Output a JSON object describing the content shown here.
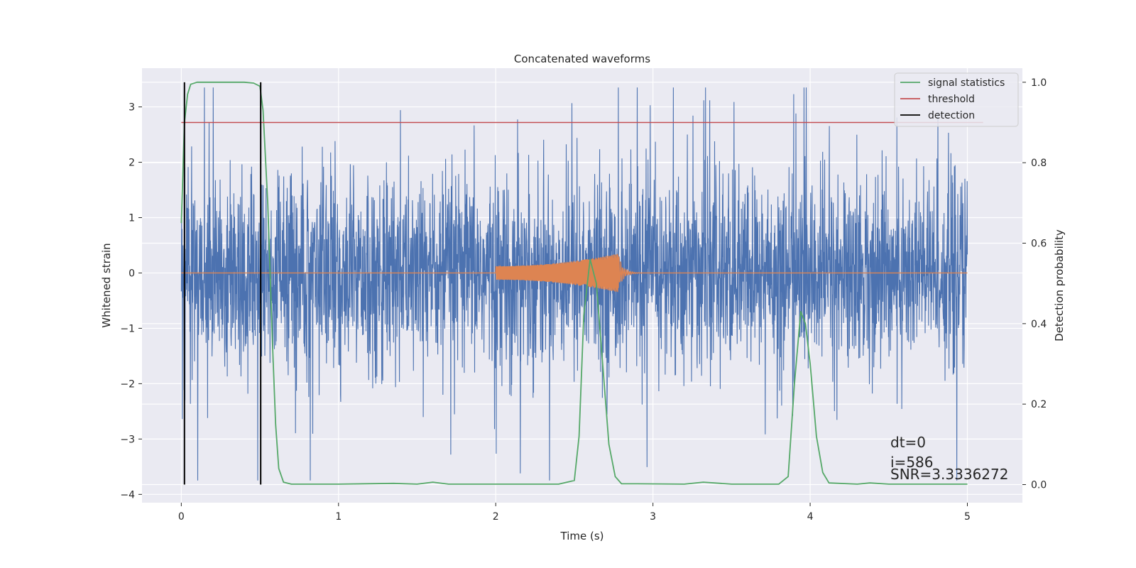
{
  "chart_data": {
    "type": "line",
    "title": "Concatenated waveforms",
    "xlabel": "Time (s)",
    "ylabel": "Whitened strain",
    "ylabel_right": "Detection probability",
    "xlim": [
      -0.25,
      5.35
    ],
    "ylim": [
      -4.15,
      3.7
    ],
    "ylim_right": [
      -0.045,
      1.035
    ],
    "xticks": [
      0,
      1,
      2,
      3,
      4,
      5
    ],
    "yticks": [
      -4,
      -3,
      -2,
      -1,
      0,
      1,
      2,
      3
    ],
    "yticks_right": [
      0.0,
      0.2,
      0.4,
      0.6,
      0.8,
      1.0
    ],
    "xtick_labels": [
      "0",
      "1",
      "2",
      "3",
      "4",
      "5"
    ],
    "ytick_labels": [
      "−4",
      "−3",
      "−2",
      "−1",
      "0",
      "1",
      "2",
      "3"
    ],
    "ytick_right_labels": [
      "0.0",
      "0.2",
      "0.4",
      "0.6",
      "0.8",
      "1.0"
    ],
    "grid": true,
    "legend_position": "top-right",
    "colors": {
      "noise": "#4c72b0",
      "template": "#dd8452",
      "signal": "#55a868",
      "threshold": "#c44e52",
      "detection": "#000000",
      "background": "#eaeaf2",
      "grid": "#ffffff"
    },
    "series": [
      {
        "name": "signal statistics",
        "axis": "right",
        "x": [
          0,
          0.02,
          0.04,
          0.06,
          0.1,
          0.2,
          0.4,
          0.46,
          0.5,
          0.52,
          0.55,
          0.58,
          0.6,
          0.62,
          0.65,
          0.7,
          1.0,
          1.35,
          1.5,
          1.6,
          1.7,
          2.0,
          2.4,
          2.5,
          2.53,
          2.56,
          2.6,
          2.64,
          2.68,
          2.72,
          2.76,
          2.8,
          2.9,
          3.2,
          3.32,
          3.5,
          3.8,
          3.86,
          3.9,
          3.94,
          3.97,
          4.0,
          4.04,
          4.08,
          4.12,
          4.3,
          4.38,
          4.5,
          5.0
        ],
        "y": [
          0.65,
          0.9,
          0.97,
          0.995,
          1.0,
          1.0,
          1.0,
          0.998,
          0.99,
          0.93,
          0.7,
          0.35,
          0.15,
          0.04,
          0.006,
          0.001,
          0.001,
          0.003,
          0.001,
          0.006,
          0.001,
          0.001,
          0.001,
          0.01,
          0.12,
          0.42,
          0.56,
          0.5,
          0.3,
          0.1,
          0.02,
          0.002,
          0.002,
          0.001,
          0.006,
          0.001,
          0.001,
          0.02,
          0.25,
          0.43,
          0.4,
          0.3,
          0.12,
          0.03,
          0.004,
          0.001,
          0.004,
          0.001,
          0.001
        ]
      },
      {
        "name": "threshold",
        "axis": "right",
        "x": [
          0,
          5.1
        ],
        "y": [
          0.9,
          0.9
        ]
      },
      {
        "name": "detection",
        "axis": "right",
        "x": [
          0.02,
          0.02,
          0.505,
          0.505
        ],
        "y": [
          0.0,
          1.0,
          0.0,
          1.0
        ]
      }
    ],
    "noise_series": {
      "axis": "left",
      "x_range": [
        0,
        5
      ],
      "amplitude_range": [
        -3.75,
        3.35
      ]
    },
    "template_series": {
      "axis": "left",
      "x_range": [
        2.0,
        2.78
      ],
      "peak_amplitude": 0.35
    },
    "annotations": [
      "dt=0",
      "i=586",
      "SNR=3.3336272"
    ]
  }
}
